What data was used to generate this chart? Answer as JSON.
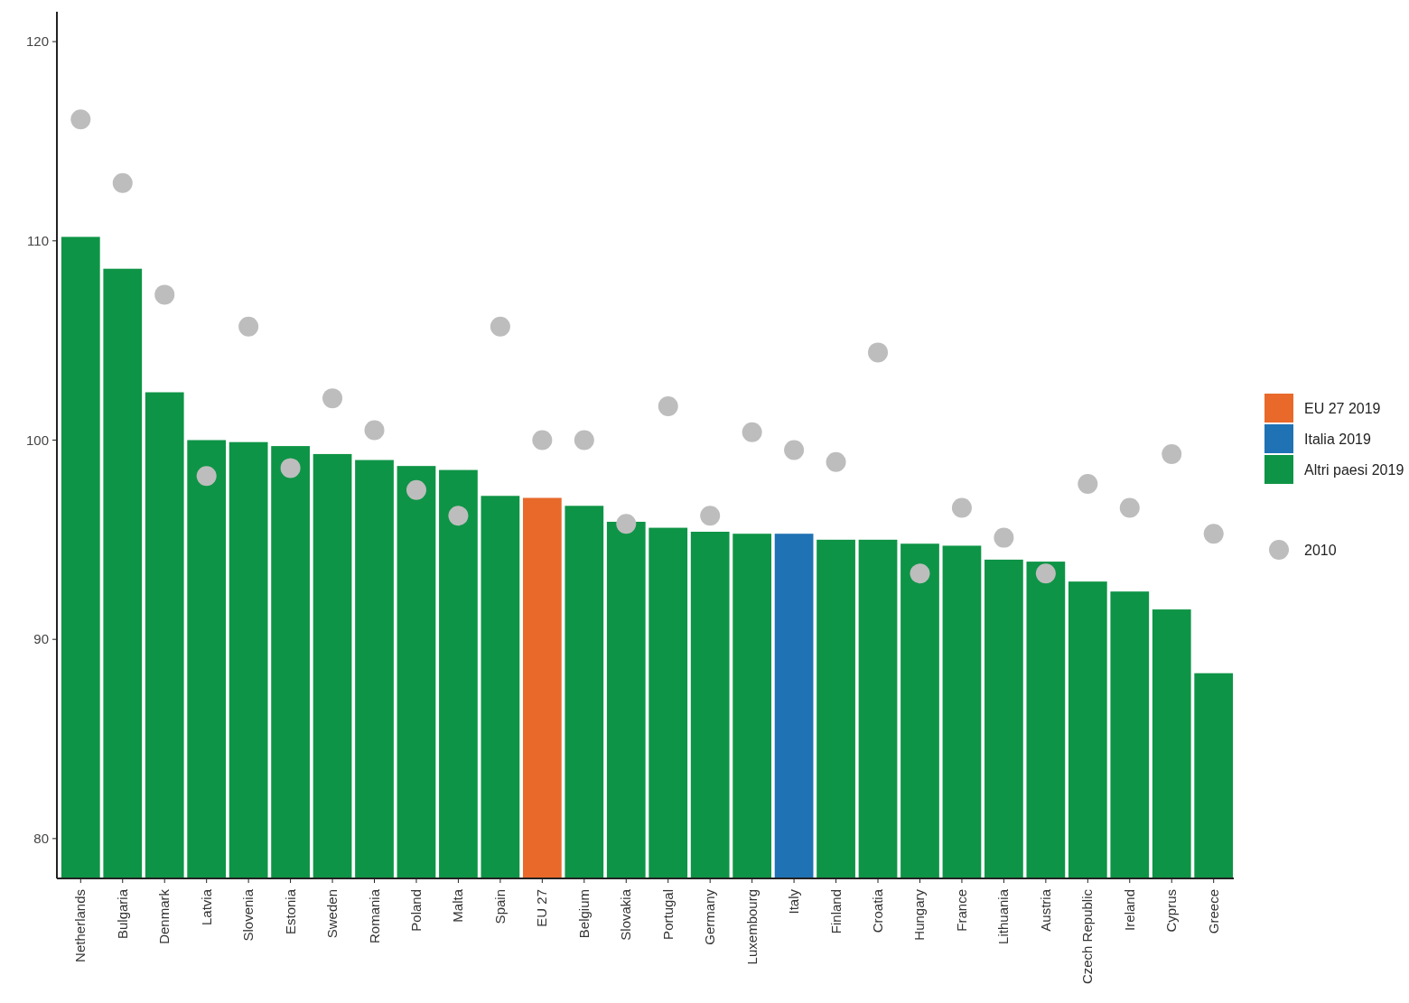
{
  "chart_data": {
    "type": "bar",
    "categories": [
      "Netherlands",
      "Bulgaria",
      "Denmark",
      "Latvia",
      "Slovenia",
      "Estonia",
      "Sweden",
      "Romania",
      "Poland",
      "Malta",
      "Spain",
      "EU 27",
      "Belgium",
      "Slovakia",
      "Portugal",
      "Germany",
      "Luxembourg",
      "Italy",
      "Finland",
      "Croatia",
      "Hungary",
      "France",
      "Lithuania",
      "Austria",
      "Czech Republic",
      "Ireland",
      "Cyprus",
      "Greece"
    ],
    "series": [
      {
        "name": "EU 27 2019",
        "color": "#e8692a",
        "values": [
          null,
          null,
          null,
          null,
          null,
          null,
          null,
          null,
          null,
          null,
          null,
          97.1,
          null,
          null,
          null,
          null,
          null,
          null,
          null,
          null,
          null,
          null,
          null,
          null,
          null,
          null,
          null,
          null
        ]
      },
      {
        "name": "Italia 2019",
        "color": "#1f72b4",
        "values": [
          null,
          null,
          null,
          null,
          null,
          null,
          null,
          null,
          null,
          null,
          null,
          null,
          null,
          null,
          null,
          null,
          null,
          95.3,
          null,
          null,
          null,
          null,
          null,
          null,
          null,
          null,
          null,
          null
        ]
      },
      {
        "name": "Altri paesi 2019",
        "color": "#0e9446",
        "values": [
          110.2,
          108.6,
          102.4,
          100.0,
          99.9,
          99.7,
          99.3,
          99.0,
          98.7,
          98.5,
          97.2,
          null,
          96.7,
          95.9,
          95.6,
          95.4,
          95.3,
          null,
          95.0,
          95.0,
          94.8,
          94.7,
          94.0,
          93.9,
          92.9,
          92.4,
          91.5,
          88.3
        ]
      },
      {
        "name": "2010",
        "type": "scatter",
        "color": "#bdbdbd",
        "values": [
          116.1,
          112.9,
          107.3,
          98.2,
          105.7,
          98.6,
          102.1,
          100.5,
          97.5,
          96.2,
          105.7,
          100.0,
          100.0,
          95.8,
          101.7,
          96.2,
          100.4,
          99.5,
          98.9,
          104.4,
          93.3,
          96.6,
          95.1,
          93.3,
          97.8,
          96.6,
          99.3,
          95.3
        ]
      }
    ],
    "ylim": [
      78,
      121.5
    ],
    "yticks": [
      80,
      90,
      100,
      110,
      120
    ],
    "grid": false,
    "legend": "right",
    "marker": "circle"
  }
}
